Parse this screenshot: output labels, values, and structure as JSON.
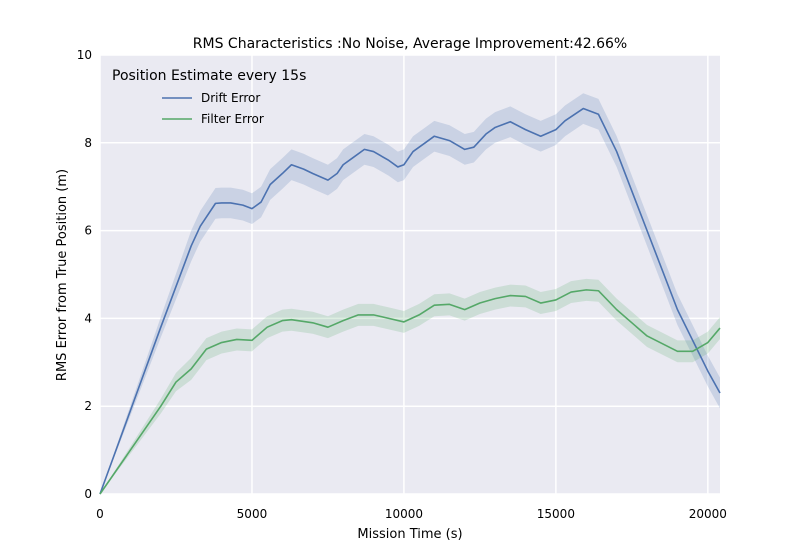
{
  "chart_data": {
    "type": "line",
    "title": "RMS Characteristics :No Noise, Average Improvement:42.66%",
    "xlabel": "Mission Time (s)",
    "ylabel": "RMS Error from True Position (m)",
    "xlim": [
      0,
      20400
    ],
    "ylim": [
      0,
      10
    ],
    "xticks": [
      0,
      5000,
      10000,
      15000,
      20000
    ],
    "yticks": [
      0,
      2,
      4,
      6,
      8,
      10
    ],
    "grid": true,
    "legend": {
      "title": "Position Estimate every 15s",
      "placement": "top-left",
      "entries": [
        "Drift Error",
        "Filter Error"
      ]
    },
    "series": [
      {
        "name": "Drift Error",
        "color": "#4c72b0",
        "band": 0.35,
        "x": [
          0,
          1000,
          2000,
          3000,
          3300,
          3800,
          4000,
          4300,
          4700,
          5000,
          5300,
          5600,
          6000,
          6300,
          6700,
          7000,
          7500,
          7800,
          8000,
          8300,
          8700,
          9000,
          9500,
          9800,
          10000,
          10300,
          10700,
          11000,
          11500,
          12000,
          12300,
          12700,
          13000,
          13500,
          14000,
          14500,
          15000,
          15300,
          15900,
          16400,
          17000,
          18000,
          19000,
          20000,
          20400
        ],
        "y": [
          0,
          1.9,
          3.8,
          5.65,
          6.1,
          6.62,
          6.63,
          6.63,
          6.58,
          6.5,
          6.65,
          7.05,
          7.3,
          7.5,
          7.4,
          7.3,
          7.15,
          7.3,
          7.5,
          7.65,
          7.85,
          7.8,
          7.6,
          7.45,
          7.5,
          7.8,
          8.0,
          8.15,
          8.05,
          7.85,
          7.9,
          8.2,
          8.35,
          8.48,
          8.3,
          8.15,
          8.3,
          8.5,
          8.78,
          8.65,
          7.8,
          6.0,
          4.2,
          2.8,
          2.3
        ]
      },
      {
        "name": "Filter Error",
        "color": "#55a868",
        "band": 0.25,
        "x": [
          0,
          1000,
          2000,
          2500,
          3000,
          3500,
          4000,
          4500,
          5000,
          5500,
          6000,
          6300,
          7000,
          7500,
          8000,
          8500,
          9000,
          9500,
          10000,
          10500,
          11000,
          11500,
          12000,
          12500,
          13000,
          13500,
          14000,
          14500,
          15000,
          15500,
          16000,
          16400,
          17000,
          18000,
          19000,
          19500,
          20000,
          20400
        ],
        "y": [
          0,
          1.0,
          2.0,
          2.55,
          2.85,
          3.3,
          3.45,
          3.52,
          3.5,
          3.8,
          3.95,
          3.97,
          3.9,
          3.8,
          3.95,
          4.08,
          4.08,
          4.0,
          3.92,
          4.08,
          4.3,
          4.32,
          4.2,
          4.35,
          4.45,
          4.52,
          4.5,
          4.35,
          4.42,
          4.6,
          4.65,
          4.63,
          4.2,
          3.6,
          3.25,
          3.25,
          3.45,
          3.78
        ]
      }
    ]
  }
}
